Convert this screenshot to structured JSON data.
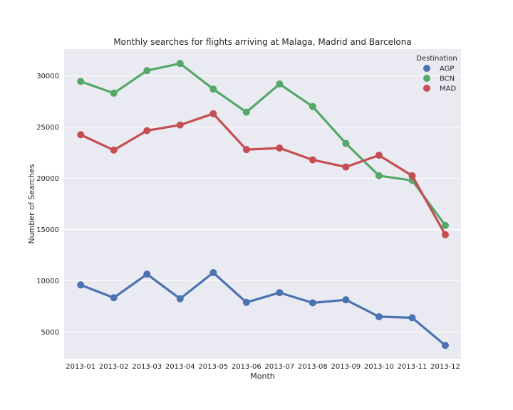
{
  "chart_data": {
    "type": "line",
    "title": "Monthly searches for flights arriving at Malaga, Madrid and Barcelona",
    "xlabel": "Month",
    "ylabel": "Number of Searches",
    "categories": [
      "2013-01",
      "2013-02",
      "2013-03",
      "2013-04",
      "2013-05",
      "2013-06",
      "2013-07",
      "2013-08",
      "2013-09",
      "2013-10",
      "2013-11",
      "2013-12"
    ],
    "yticks": [
      5000,
      10000,
      15000,
      20000,
      25000,
      30000
    ],
    "ylim": [
      2400,
      32600
    ],
    "grid": true,
    "legend": {
      "title": "Destination",
      "placement": "top-right"
    },
    "series": [
      {
        "name": "AGP",
        "color": "#4c72b0",
        "values": [
          9600,
          8350,
          10650,
          8250,
          10800,
          7900,
          8850,
          7850,
          8150,
          6500,
          6400,
          3700
        ]
      },
      {
        "name": "BCN",
        "color": "#55a868",
        "values": [
          29450,
          28300,
          30500,
          31200,
          28700,
          26450,
          29200,
          27000,
          23400,
          20250,
          19800,
          15400
        ]
      },
      {
        "name": "MAD",
        "color": "#c44e52",
        "values": [
          24250,
          22750,
          24650,
          25200,
          26300,
          22800,
          22950,
          21800,
          21100,
          22250,
          20250,
          14500
        ]
      }
    ]
  }
}
